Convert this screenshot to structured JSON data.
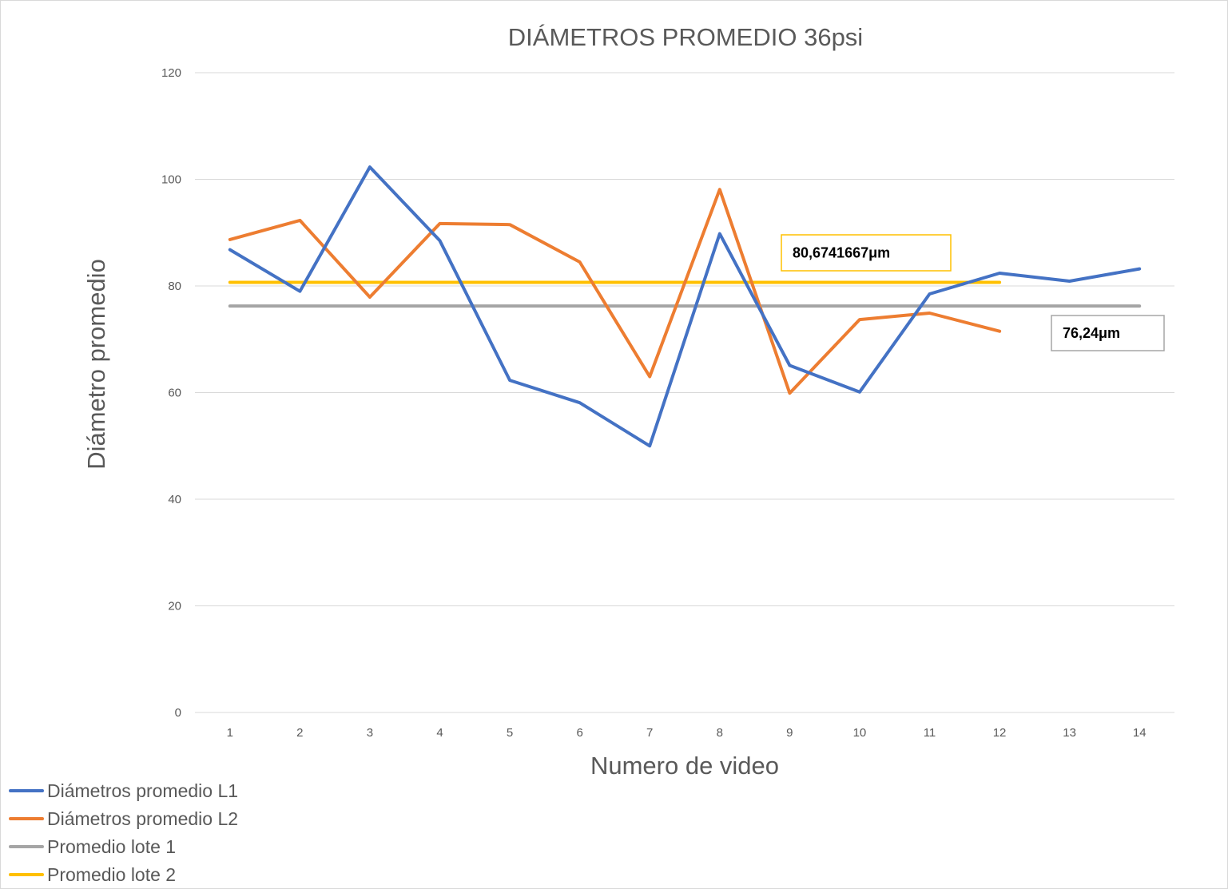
{
  "chart_data": {
    "type": "line",
    "title": "DIÁMETROS PROMEDIO 36psi",
    "xlabel": "Numero de video",
    "ylabel": "Diámetro promedio",
    "categories": [
      "1",
      "2",
      "3",
      "4",
      "5",
      "6",
      "7",
      "8",
      "9",
      "10",
      "11",
      "12",
      "13",
      "14"
    ],
    "ylim": [
      0,
      120
    ],
    "yticks": [
      0,
      20,
      40,
      60,
      80,
      100,
      120
    ],
    "grid": "horizontal",
    "legend_position": "bottom-left",
    "series": [
      {
        "name": "Diámetros promedio L1",
        "color": "#4472C4",
        "values": [
          86.8,
          79.0,
          102.3,
          88.5,
          62.3,
          58.1,
          50.0,
          89.8,
          65.1,
          60.1,
          78.5,
          82.4,
          80.9,
          83.2
        ]
      },
      {
        "name": "Diámetros promedio L2",
        "color": "#ED7D31",
        "values": [
          88.7,
          92.3,
          77.9,
          91.7,
          91.5,
          84.5,
          63.0,
          98.1,
          59.9,
          73.7,
          74.9,
          71.5,
          null,
          null
        ]
      },
      {
        "name": "Promedio lote 1",
        "color": "#A5A5A5",
        "values": [
          76.24,
          76.24,
          76.24,
          76.24,
          76.24,
          76.24,
          76.24,
          76.24,
          76.24,
          76.24,
          76.24,
          76.24,
          76.24,
          76.24
        ]
      },
      {
        "name": "Promedio lote 2",
        "color": "#FFC000",
        "values": [
          80.6741667,
          80.6741667,
          80.6741667,
          80.6741667,
          80.6741667,
          80.6741667,
          80.6741667,
          80.6741667,
          80.6741667,
          80.6741667,
          80.6741667,
          80.6741667,
          null,
          null
        ]
      }
    ],
    "annotations": [
      {
        "text": "80,6741667μm",
        "border_color": "#FFC000",
        "value": 80.6741667
      },
      {
        "text": "76,24μm",
        "border_color": "#A5A5A5",
        "value": 76.24
      }
    ]
  }
}
